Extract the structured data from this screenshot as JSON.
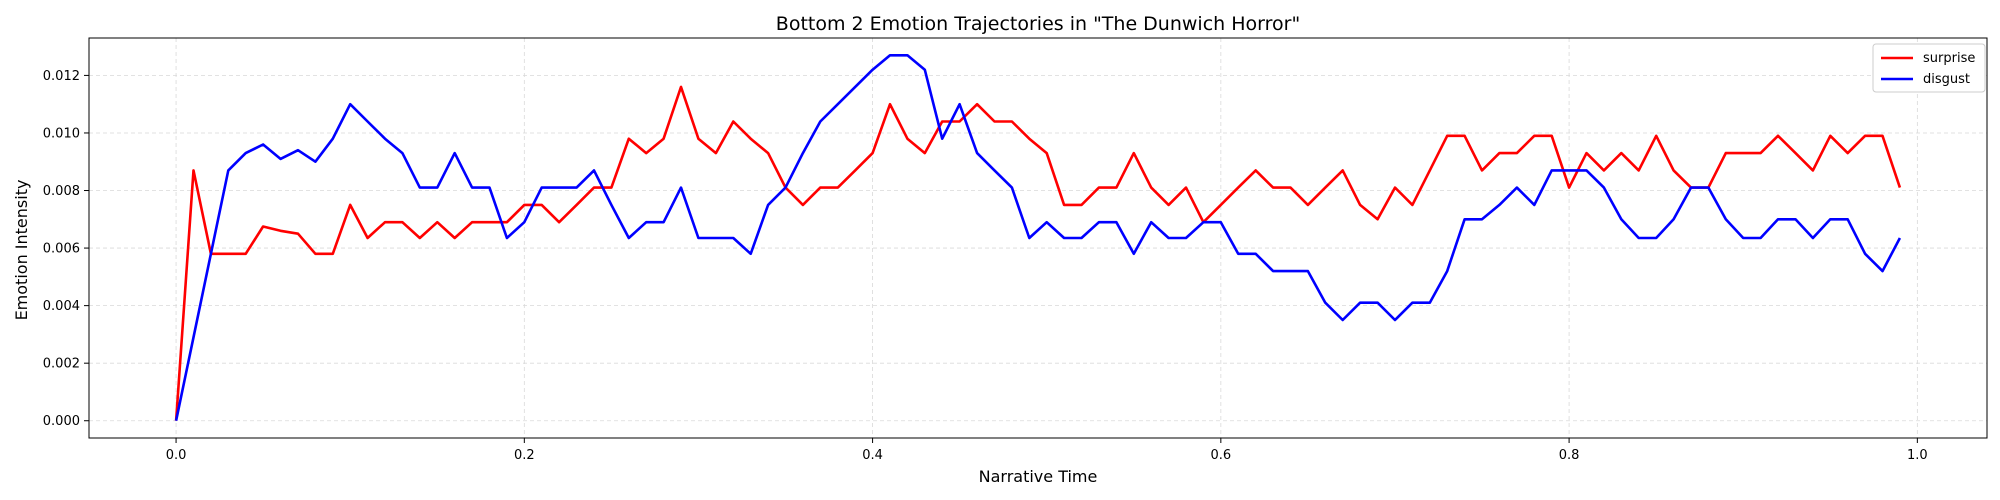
{
  "chart_data": {
    "type": "line",
    "title": "Bottom 2 Emotion Trajectories in \"The Dunwich Horror\"",
    "xlabel": "Narrative Time",
    "ylabel": "Emotion Intensity",
    "xlim": [
      -0.05,
      1.04
    ],
    "ylim": [
      -0.0006,
      0.0133
    ],
    "xticks": [
      0.0,
      0.2,
      0.4,
      0.6,
      0.8,
      1.0
    ],
    "xtick_labels": [
      "0.0",
      "0.2",
      "0.4",
      "0.6",
      "0.8",
      "1.0"
    ],
    "yticks": [
      0.0,
      0.002,
      0.004,
      0.006,
      0.008,
      0.01,
      0.012
    ],
    "ytick_labels": [
      "0.000",
      "0.002",
      "0.004",
      "0.006",
      "0.008",
      "0.010",
      "0.012"
    ],
    "grid": true,
    "legend_position": "top-right",
    "x": [
      0.0,
      0.01,
      0.02,
      0.03,
      0.04,
      0.05,
      0.06,
      0.07,
      0.08,
      0.09,
      0.1,
      0.11,
      0.12,
      0.13,
      0.14,
      0.15,
      0.16,
      0.17,
      0.18,
      0.19,
      0.2,
      0.21,
      0.22,
      0.23,
      0.24,
      0.25,
      0.26,
      0.27,
      0.28,
      0.29,
      0.3,
      0.31,
      0.32,
      0.33,
      0.34,
      0.35,
      0.36,
      0.37,
      0.38,
      0.39,
      0.4,
      0.41,
      0.42,
      0.43,
      0.44,
      0.45,
      0.46,
      0.47,
      0.48,
      0.49,
      0.5,
      0.51,
      0.52,
      0.53,
      0.54,
      0.55,
      0.56,
      0.57,
      0.58,
      0.59,
      0.6,
      0.61,
      0.62,
      0.63,
      0.64,
      0.65,
      0.66,
      0.67,
      0.68,
      0.69,
      0.7,
      0.71,
      0.72,
      0.73,
      0.74,
      0.75,
      0.76,
      0.77,
      0.78,
      0.79,
      0.8,
      0.81,
      0.82,
      0.83,
      0.84,
      0.85,
      0.86,
      0.87,
      0.88,
      0.89,
      0.9,
      0.91,
      0.92,
      0.93,
      0.94,
      0.95,
      0.96,
      0.97,
      0.98,
      0.99
    ],
    "series": [
      {
        "name": "surprise",
        "color": "#ff0000",
        "values": [
          0.0,
          0.0087,
          0.0058,
          0.0058,
          0.0058,
          0.00675,
          0.0066,
          0.0065,
          0.0058,
          0.0058,
          0.0075,
          0.00635,
          0.0069,
          0.0069,
          0.00635,
          0.0069,
          0.00635,
          0.0069,
          0.0069,
          0.0069,
          0.0075,
          0.0075,
          0.0069,
          0.0075,
          0.0081,
          0.0081,
          0.0098,
          0.0093,
          0.0098,
          0.0116,
          0.0098,
          0.0093,
          0.0104,
          0.0098,
          0.0093,
          0.0081,
          0.0075,
          0.0081,
          0.0081,
          0.0087,
          0.0093,
          0.011,
          0.0098,
          0.0093,
          0.0104,
          0.0104,
          0.011,
          0.0104,
          0.0104,
          0.0098,
          0.0093,
          0.0075,
          0.0075,
          0.0081,
          0.0081,
          0.0093,
          0.0081,
          0.0075,
          0.0081,
          0.0069,
          0.0075,
          0.0081,
          0.0087,
          0.0081,
          0.0081,
          0.0075,
          0.0081,
          0.0087,
          0.0075,
          0.007,
          0.0081,
          0.0075,
          0.0087,
          0.0099,
          0.0099,
          0.0087,
          0.0093,
          0.0093,
          0.0099,
          0.0099,
          0.0081,
          0.0093,
          0.0087,
          0.0093,
          0.0087,
          0.0099,
          0.0087,
          0.0081,
          0.0081,
          0.0093,
          0.0093,
          0.0093,
          0.0099,
          0.0093,
          0.0087,
          0.0099,
          0.0093,
          0.0099,
          0.0099,
          0.0081
        ]
      },
      {
        "name": "disgust",
        "color": "#0000ff",
        "values": [
          0.0,
          0.0029,
          0.0058,
          0.0087,
          0.0093,
          0.0096,
          0.0091,
          0.0094,
          0.009,
          0.0098,
          0.011,
          0.0104,
          0.0098,
          0.0093,
          0.0081,
          0.0081,
          0.0093,
          0.0081,
          0.0081,
          0.00635,
          0.0069,
          0.0081,
          0.0081,
          0.0081,
          0.0087,
          0.0075,
          0.00635,
          0.0069,
          0.0069,
          0.0081,
          0.00635,
          0.00635,
          0.00635,
          0.0058,
          0.0075,
          0.0081,
          0.0093,
          0.0104,
          0.011,
          0.0116,
          0.0122,
          0.0127,
          0.0127,
          0.0122,
          0.0098,
          0.011,
          0.0093,
          0.0087,
          0.0081,
          0.00635,
          0.0069,
          0.00635,
          0.00635,
          0.0069,
          0.0069,
          0.0058,
          0.0069,
          0.00635,
          0.00635,
          0.0069,
          0.0069,
          0.0058,
          0.0058,
          0.0052,
          0.0052,
          0.0052,
          0.0041,
          0.0035,
          0.0041,
          0.0041,
          0.0035,
          0.0041,
          0.0041,
          0.0052,
          0.007,
          0.007,
          0.0075,
          0.0081,
          0.0075,
          0.0087,
          0.0087,
          0.0087,
          0.0081,
          0.007,
          0.00635,
          0.00635,
          0.007,
          0.0081,
          0.0081,
          0.007,
          0.00635,
          0.00635,
          0.007,
          0.007,
          0.00635,
          0.007,
          0.007,
          0.0058,
          0.0052,
          0.00635
        ]
      }
    ]
  }
}
